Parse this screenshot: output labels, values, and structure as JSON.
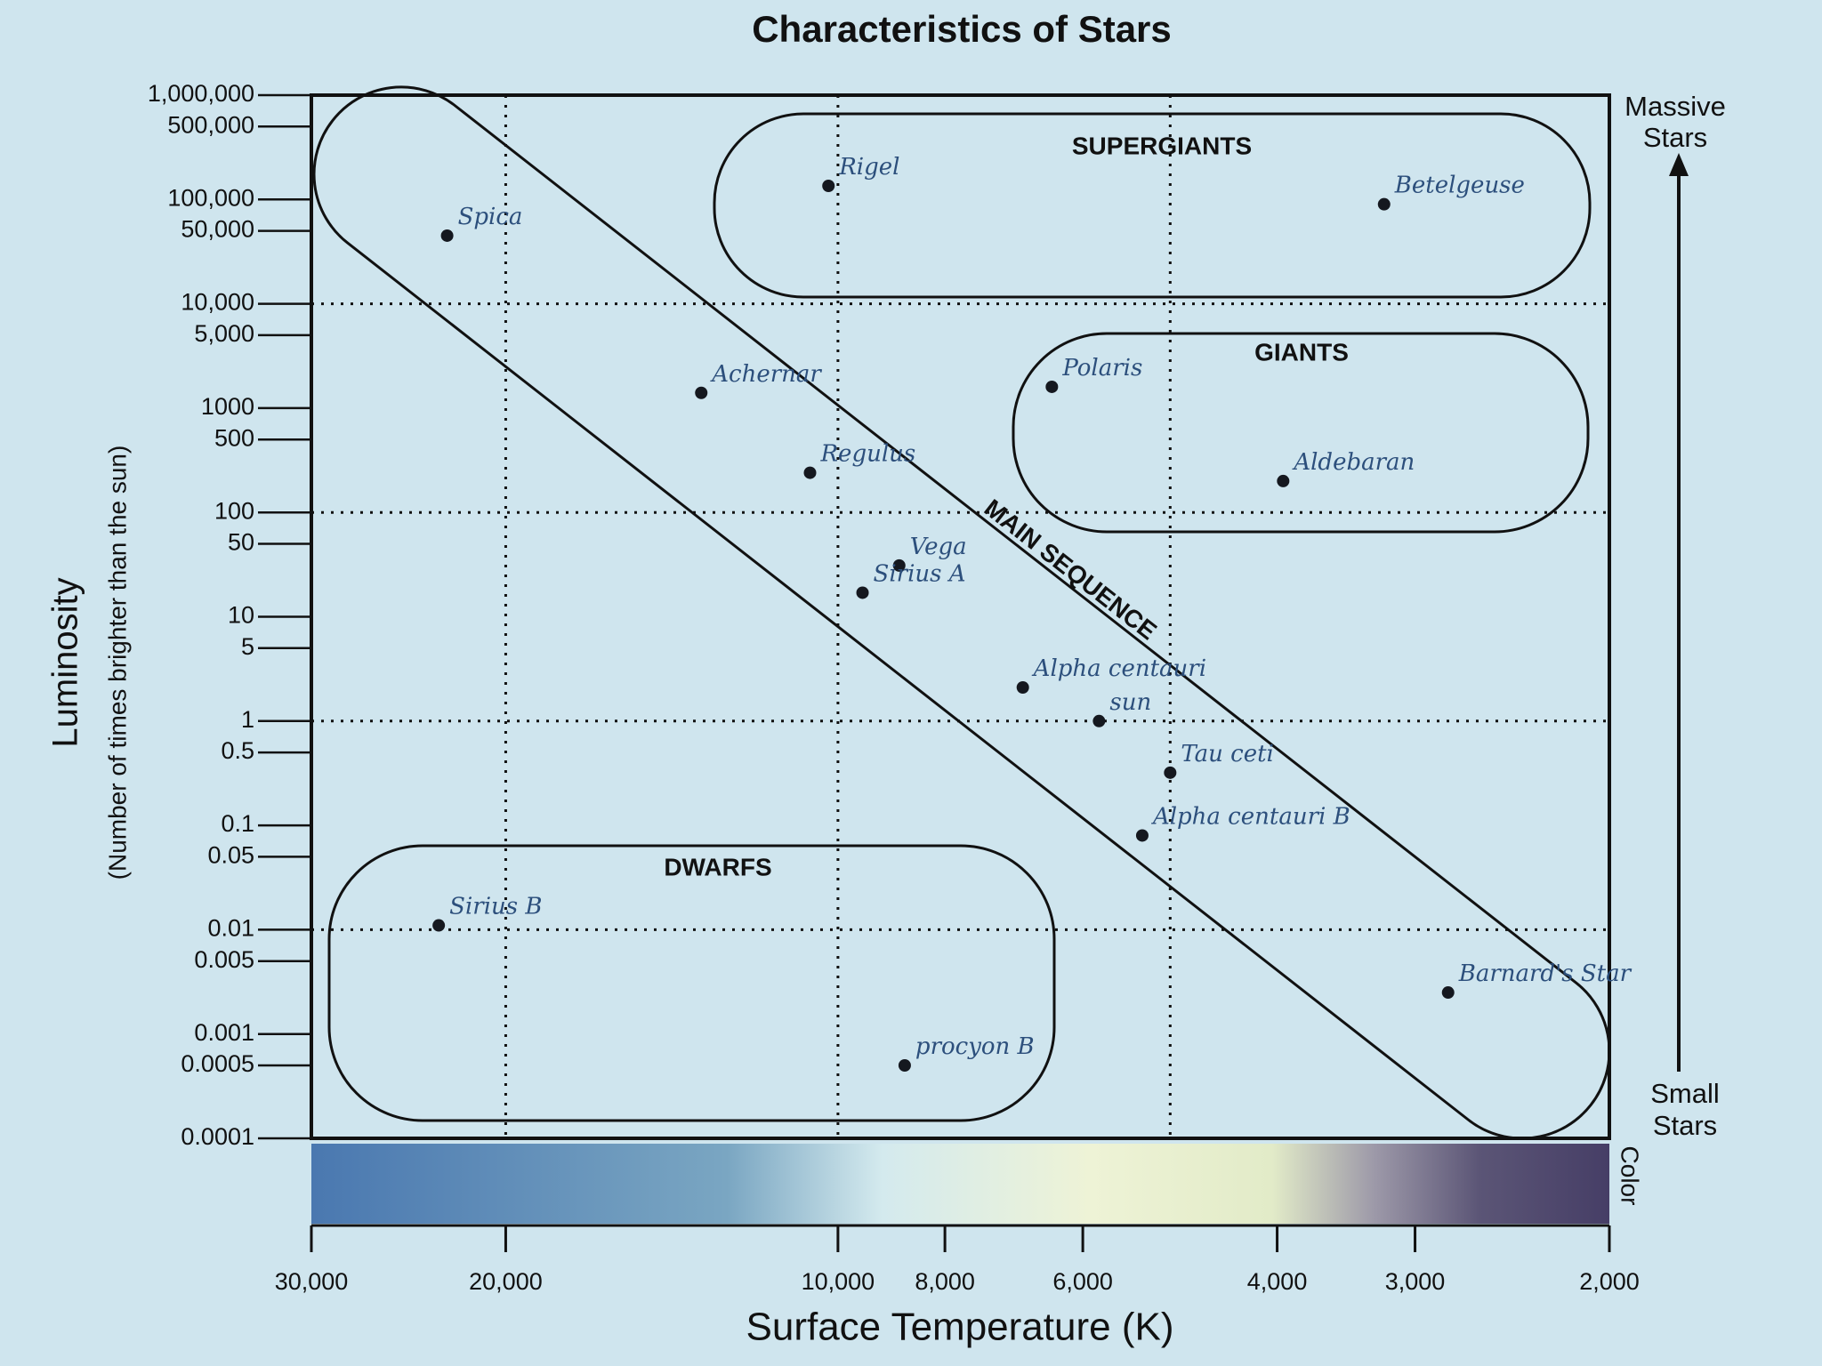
{
  "chart_data": {
    "type": "scatter",
    "title": "Characteristics of Stars",
    "x_label": "Surface Temperature (K)",
    "y_label": "Luminosity",
    "y_sublabel": "(Number of times brighter than the sun)",
    "xscale": "log",
    "yscale": "log",
    "xlim": [
      30000,
      2000
    ],
    "ylim": [
      0.0001,
      1000000
    ],
    "xticks": [
      {
        "value": 30000,
        "label": "30,000"
      },
      {
        "value": 20000,
        "label": "20,000"
      },
      {
        "value": 10000,
        "label": "10,000"
      },
      {
        "value": 8000,
        "label": "8,000"
      },
      {
        "value": 6000,
        "label": "6,000"
      },
      {
        "value": 4000,
        "label": "4,000"
      },
      {
        "value": 3000,
        "label": "3,000"
      },
      {
        "value": 2000,
        "label": "2,000"
      }
    ],
    "yticks": [
      {
        "value": 1000000,
        "label": "1,000,000"
      },
      {
        "value": 500000,
        "label": "500,000"
      },
      {
        "value": 100000,
        "label": "100,000"
      },
      {
        "value": 50000,
        "label": "50,000"
      },
      {
        "value": 10000,
        "label": "10,000"
      },
      {
        "value": 5000,
        "label": "5,000"
      },
      1000,
      500,
      100,
      50,
      10,
      5,
      1,
      0.5,
      0.1,
      0.05,
      0.01,
      0.005,
      0.001,
      0.0005,
      0.0001
    ],
    "grid_x": [
      20000,
      10000,
      5000
    ],
    "grid_y": [
      10000,
      100,
      1,
      0.01
    ],
    "x": [
      22600,
      10200,
      3200,
      6400,
      3950,
      13300,
      10600,
      8800,
      9500,
      6800,
      5800,
      5000,
      5300,
      2800,
      23000,
      8700
    ],
    "values": [
      45000,
      135000,
      90000,
      1600,
      200,
      1400,
      240,
      31,
      17,
      2.1,
      1,
      0.32,
      0.08,
      0.0025,
      0.011,
      0.0005
    ],
    "point_labels": [
      "Spica",
      "Rigel",
      "Betelgeuse",
      "Polaris",
      "Aldebaran",
      "Achernar",
      "Regulus",
      "Vega",
      "Sirius A",
      "Alpha centauri",
      "sun",
      "Tau ceti",
      "Alpha centauri B",
      "Barnard's Star",
      "Sirius B",
      "procyon B"
    ],
    "color": "#15181f",
    "label_color": "#2c4f7c",
    "regions": [
      "SUPERGIANTS",
      "GIANTS",
      "MAIN SEQUENCE",
      "DWARFS"
    ],
    "top_note": [
      "Massive",
      "Stars"
    ],
    "bottom_note": [
      "Small",
      "Stars"
    ],
    "color_bar_label": "Color"
  }
}
